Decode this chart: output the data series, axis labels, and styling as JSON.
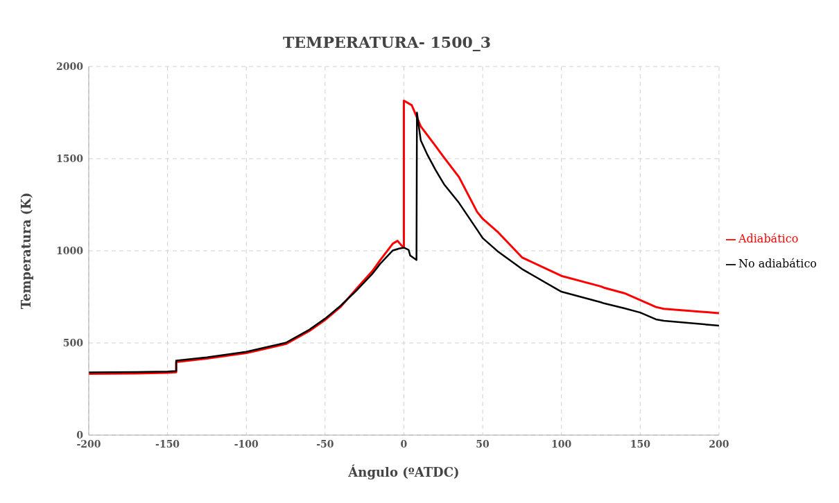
{
  "chart_data": {
    "type": "line",
    "title": "TEMPERATURA- 1500_3",
    "xlabel": "Ángulo (ºATDC)",
    "ylabel": "Temperatura (K)",
    "xlim": [
      -200,
      200
    ],
    "xticks": [
      -200,
      -150,
      -100,
      -50,
      0,
      50,
      100,
      150,
      200
    ],
    "ylim": [
      0,
      2000
    ],
    "yticks": [
      0,
      500,
      1000,
      1500,
      2000
    ],
    "grid": true,
    "legend": "right",
    "marker": "none",
    "line_style": "solid",
    "series": [
      {
        "name": "Adiabático",
        "color": "#ff0000",
        "x": [
          -200,
          -170,
          -150,
          -144.5,
          -144.5,
          -125,
          -100,
          -75,
          -60,
          -50,
          -40,
          -30,
          -20,
          -15,
          -7,
          -4,
          -1,
          0,
          0,
          5,
          10.7,
          20,
          25.5,
          35,
          46.5,
          50,
          60,
          75,
          100,
          125,
          127,
          140,
          150,
          160,
          165,
          200
        ],
        "values": [
          333,
          335,
          338,
          341,
          397,
          415,
          445,
          494,
          565,
          625,
          697,
          795,
          890,
          950,
          1039,
          1054,
          1024,
          1020,
          1815,
          1790,
          1675,
          1570,
          1506,
          1400,
          1211,
          1174,
          1099,
          964,
          864,
          807,
          800,
          770,
          733,
          695,
          685,
          662
        ]
      },
      {
        "name": "No adiabático",
        "color": "#000000",
        "x": [
          -200,
          -170,
          -150,
          -144.5,
          -144.5,
          -125,
          -100,
          -75,
          -60,
          -50,
          -40,
          -30,
          -20,
          -15,
          -7,
          -3,
          0,
          3,
          4,
          8,
          8.3,
          10.7,
          15,
          20,
          25.5,
          35,
          46.5,
          50,
          60,
          75,
          100,
          125,
          127,
          140,
          150,
          160,
          165,
          200
        ],
        "values": [
          340,
          342,
          345,
          348,
          404,
          422,
          452,
          501,
          572,
          632,
          703,
          785,
          875,
          930,
          1002,
          1012,
          1017,
          1005,
          975,
          950,
          1750,
          1600,
          1520,
          1440,
          1361,
          1260,
          1114,
          1069,
          994,
          901,
          778,
          721,
          715,
          688,
          665,
          628,
          620,
          594
        ]
      }
    ]
  }
}
